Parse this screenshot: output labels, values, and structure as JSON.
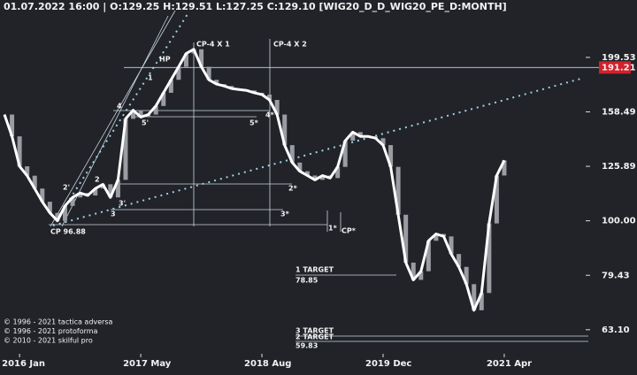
{
  "chart_data": {
    "type": "candlestick",
    "title": "01.07.2022 16:00 | O:129.25 H:129.51 L:127.25 C:129.10  [WIG20_D_D_WIG20_PE_D:MONTH]",
    "log_scale": true,
    "ylim": [
      57,
      236
    ],
    "yticks": [
      {
        "value": 63.1,
        "label": "63.10"
      },
      79.43,
      {
        "value": 100,
        "label": "100.00"
      },
      125.89,
      158.49,
      199.53
    ],
    "categories": [
      null,
      null,
      "2016 Jan",
      null,
      null,
      null,
      null,
      null,
      null,
      null,
      null,
      null,
      null,
      null,
      null,
      null,
      null,
      null,
      "2017 May",
      null,
      null,
      null,
      null,
      null,
      null,
      null,
      null,
      null,
      null,
      null,
      null,
      null,
      null,
      null,
      "2018 Aug",
      null,
      null,
      null,
      null,
      null,
      null,
      null,
      null,
      null,
      null,
      null,
      null,
      null,
      null,
      null,
      "2019 Dec",
      null,
      null,
      null,
      null,
      null,
      null,
      null,
      null,
      null,
      null,
      null,
      null,
      null,
      null,
      null,
      "2021 Apr"
    ],
    "series": [
      {
        "name": "close",
        "color": "#ffffff",
        "values": [
          156.7,
          142.9,
          125.9,
          121,
          114.6,
          108.4,
          103.4,
          100,
          106.5,
          110.4,
          112.5,
          111.3,
          114.6,
          116.7,
          110.4,
          118.9,
          153.9,
          159.6,
          155,
          156.7,
          162.5,
          171.8,
          181.5,
          191.8,
          202.8,
          206.5,
          191.8,
          181.5,
          178.2,
          176.8,
          174.9,
          174.2,
          173.5,
          171.8,
          170.5,
          166.7,
          156.7,
          137.7,
          127.9,
          123.3,
          121.1,
          118.9,
          121.1,
          119.8,
          125.6,
          140.3,
          145.5,
          142.9,
          142.9,
          141.8,
          137.7,
          125.6,
          102.6,
          83.8,
          77.9,
          80.8,
          91.9,
          94.6,
          93.6,
          86.9,
          82.3,
          76.5,
          68.5,
          73.7,
          98.9,
          121.1,
          129.1
        ]
      }
    ],
    "candle_color": "#9a9ca3",
    "marker_line": {
      "value": 191.21,
      "label": "191.21",
      "color": "#d0212c"
    },
    "annotations": [
      "CP-4 X 1",
      "CP-4 X 2",
      "HP",
      "1",
      "2",
      "3",
      "3'",
      "4",
      "5'",
      "2'",
      "4*",
      "5*",
      "2*",
      "3*",
      "1*",
      "CP*",
      "CP 96.88",
      "1 TARGET",
      "78.85",
      "3 TARGET",
      "2 TARGET",
      "59.83"
    ],
    "copyright": [
      "© 1996 - 2021 tactica adversa",
      "© 1996 - 2021 protoforma",
      "© 2010 - 2021 skilful pro"
    ]
  }
}
